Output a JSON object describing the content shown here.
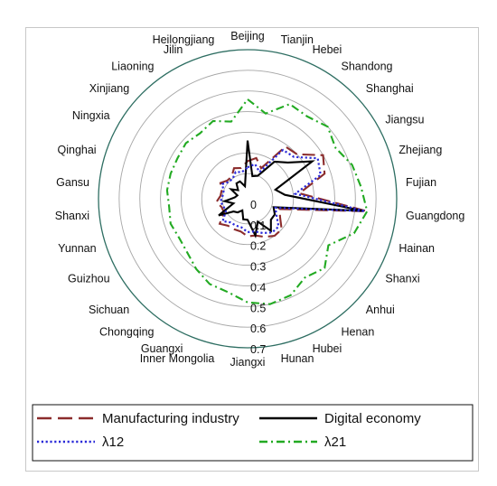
{
  "chart_data": {
    "type": "radar",
    "categories": [
      "Beijing",
      "Tianjin",
      "Hebei",
      "Shandong",
      "Shanghai",
      "Jiangsu",
      "Zhejiang",
      "Fujian",
      "Guangdong",
      "Hainan",
      "Shanxi",
      "Anhui",
      "Henan",
      "Hubei",
      "Hunan",
      "Jiangxi",
      "Inner Mongolia",
      "Guangxi",
      "Chongqing",
      "Sichuan",
      "Guizhou",
      "Yunnan",
      "Shanxi",
      "Gansu",
      "Qinghai",
      "Ningxia",
      "Xinjiang",
      "Liaoning",
      "Jilin",
      "Heilongjiang"
    ],
    "radial_ticks": [
      "0",
      "0.1",
      "0.2",
      "0.3",
      "0.4",
      "0.5",
      "0.6",
      "0.7"
    ],
    "rlim": [
      0,
      0.7
    ],
    "grid": true,
    "legend_position": "bottom",
    "series": [
      {
        "name": "Manufacturing industry",
        "color": "#8b2c2c",
        "dash": "long-dash",
        "values": [
          0.16,
          0.18,
          0.14,
          0.29,
          0.3,
          0.4,
          0.37,
          0.23,
          0.56,
          0.14,
          0.16,
          0.2,
          0.2,
          0.18,
          0.16,
          0.16,
          0.14,
          0.14,
          0.14,
          0.16,
          0.11,
          0.11,
          0.13,
          0.11,
          0.11,
          0.13,
          0.11,
          0.11,
          0.14,
          0.13
        ]
      },
      {
        "name": "Digital economy",
        "color": "#000000",
        "dash": "solid",
        "values": [
          0.26,
          0.09,
          0.1,
          0.2,
          0.24,
          0.34,
          0.12,
          0.16,
          0.54,
          0.11,
          0.13,
          0.13,
          0.17,
          0.1,
          0.16,
          0.08,
          0.08,
          0.04,
          0.06,
          0.07,
          0.14,
          0.05,
          0.09,
          0.04,
          0.03,
          0.07,
          0.04,
          0.07,
          0.07,
          0.04
        ]
      },
      {
        "name": "λ12",
        "color": "#2a2ad8",
        "dash": "dotted",
        "values": [
          0.13,
          0.15,
          0.12,
          0.27,
          0.28,
          0.37,
          0.35,
          0.21,
          0.55,
          0.12,
          0.14,
          0.18,
          0.18,
          0.16,
          0.14,
          0.14,
          0.12,
          0.12,
          0.12,
          0.14,
          0.1,
          0.1,
          0.11,
          0.1,
          0.1,
          0.12,
          0.1,
          0.1,
          0.12,
          0.11
        ]
      },
      {
        "name": "λ21",
        "color": "#22aa22",
        "dash": "dash-dot",
        "values": [
          0.46,
          0.4,
          0.48,
          0.47,
          0.5,
          0.47,
          0.51,
          0.53,
          0.56,
          0.52,
          0.43,
          0.48,
          0.45,
          0.49,
          0.5,
          0.48,
          0.44,
          0.43,
          0.4,
          0.37,
          0.36,
          0.37,
          0.36,
          0.37,
          0.37,
          0.37,
          0.38,
          0.37,
          0.39,
          0.36
        ]
      }
    ]
  }
}
